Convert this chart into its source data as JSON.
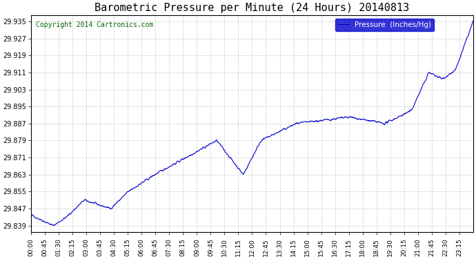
{
  "title": "Barometric Pressure per Minute (24 Hours) 20140813",
  "copyright": "Copyright 2014 Cartronics.com",
  "legend_label": "Pressure  (Inches/Hg)",
  "line_color": "#0000cc",
  "background_color": "#ffffff",
  "grid_color": "#bbbbbb",
  "ylim": [
    29.836,
    29.938
  ],
  "yticks": [
    29.839,
    29.847,
    29.855,
    29.863,
    29.871,
    29.879,
    29.887,
    29.895,
    29.903,
    29.911,
    29.919,
    29.927,
    29.935
  ],
  "xtick_labels": [
    "00:00",
    "00:45",
    "01:30",
    "02:15",
    "03:00",
    "03:45",
    "04:30",
    "05:15",
    "06:00",
    "06:45",
    "07:30",
    "08:15",
    "09:00",
    "09:45",
    "10:30",
    "11:15",
    "12:00",
    "12:45",
    "13:30",
    "14:15",
    "15:00",
    "15:45",
    "16:30",
    "17:15",
    "18:00",
    "18:45",
    "19:30",
    "20:15",
    "21:00",
    "21:45",
    "22:30",
    "23:15"
  ],
  "n_minutes": 1441,
  "figsize": [
    6.9,
    3.75
  ],
  "dpi": 100
}
